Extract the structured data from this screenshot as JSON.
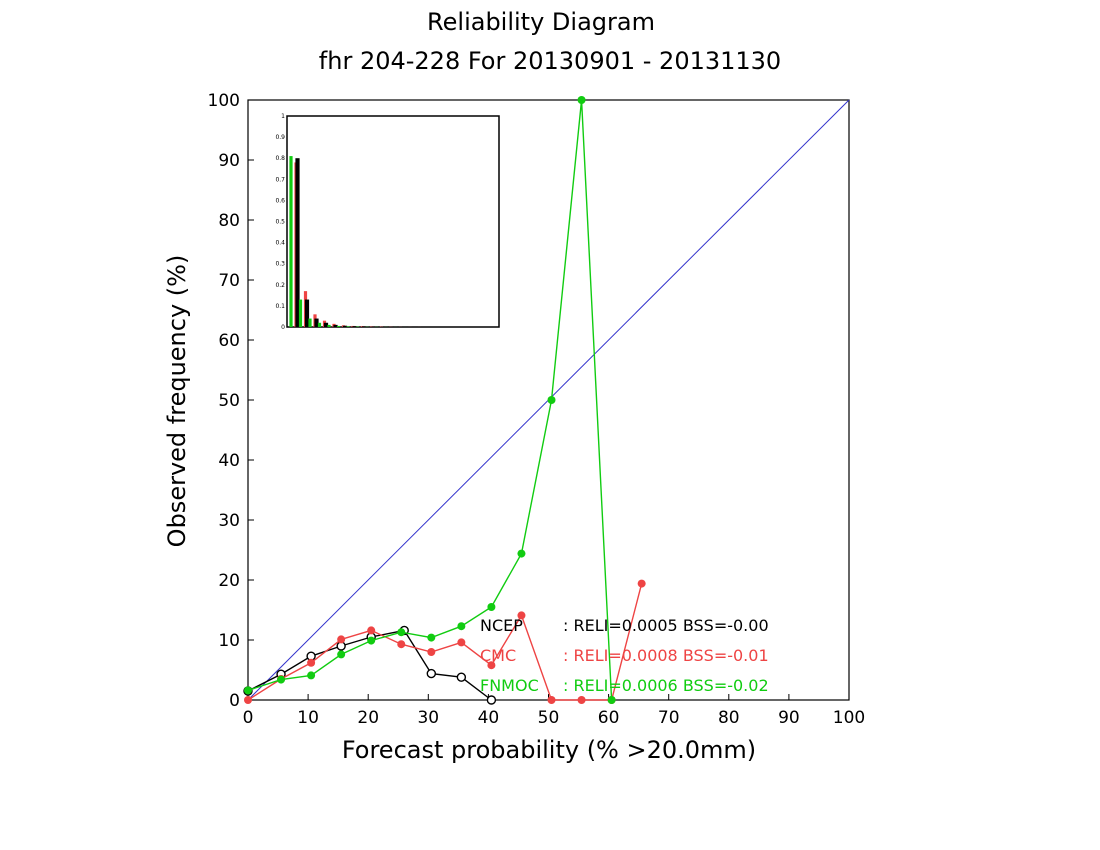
{
  "chart_data": {
    "type": "line",
    "title": "Reliability Diagram",
    "subtitle": "fhr 204-228 For 20130901 - 20131130",
    "xlabel": "Forecast probability (% >20.0mm)",
    "ylabel": "Observed frequency  (%)",
    "xlim": [
      0,
      100
    ],
    "ylim": [
      0,
      100
    ],
    "x_ticks": [
      "0",
      "10",
      "20",
      "30",
      "40",
      "50",
      "60",
      "70",
      "80",
      "90",
      "100"
    ],
    "y_ticks": [
      "0",
      "10",
      "20",
      "30",
      "40",
      "50",
      "60",
      "70",
      "80",
      "90",
      "100"
    ],
    "diagonal_color": "#3333cc",
    "grid": false,
    "series": [
      {
        "name": "NCEP",
        "color": "#000000",
        "marker": "open-circle",
        "stats": ": RELI=0.0005 BSS=-0.00",
        "x": [
          0,
          5.5,
          10.5,
          15.5,
          20.5,
          26,
          30.5,
          35.5,
          40.5
        ],
        "y": [
          1.5,
          4.3,
          7.3,
          9.0,
          10.5,
          11.6,
          4.4,
          3.8,
          0
        ]
      },
      {
        "name": "CMC",
        "color": "#ee4444",
        "marker": "filled-circle",
        "stats": ": RELI=0.0008 BSS=-0.01",
        "x": [
          0,
          5.5,
          10.5,
          15.5,
          20.5,
          25.5,
          30.5,
          35.5,
          40.5,
          45.5,
          50.5,
          55.5,
          60.5,
          65.5
        ],
        "y": [
          0,
          3.5,
          6.2,
          10.1,
          11.6,
          9.3,
          8.0,
          9.6,
          5.8,
          14.1,
          0,
          0,
          0,
          19.4
        ]
      },
      {
        "name": "FNMOC",
        "color": "#11cc11",
        "marker": "filled-circle",
        "stats": ": RELI=0.0006 BSS=-0.02",
        "x": [
          0,
          5.5,
          10.5,
          15.5,
          20.5,
          25.5,
          30.5,
          35.5,
          40.5,
          45.5,
          50.5,
          55.5,
          60.5
        ],
        "y": [
          1.6,
          3.4,
          4.1,
          7.6,
          9.9,
          11.3,
          10.4,
          12.3,
          15.5,
          24.4,
          50.0,
          100.0,
          0
        ]
      }
    ],
    "inset": {
      "type": "bar",
      "y_ticks": [
        "0",
        "0.1",
        "0.2",
        "0.3",
        "0.4",
        "0.5",
        "0.6",
        "0.7",
        "0.8",
        "0.9",
        "1"
      ],
      "ylim": [
        0,
        1
      ],
      "bins": [
        0,
        1,
        2,
        3,
        4,
        5,
        6,
        7,
        8,
        9,
        10,
        11,
        12,
        13
      ],
      "series": [
        {
          "name": "NCEP",
          "color": "#000000",
          "values": [
            0.8,
            0.13,
            0.04,
            0.02,
            0.01,
            0.006,
            0.004,
            0.003,
            0.002,
            0.001,
            0.001,
            0.0005,
            0.0003,
            0.0002
          ]
        },
        {
          "name": "CMC",
          "color": "#ee4444",
          "values": [
            0.78,
            0.17,
            0.06,
            0.03,
            0.015,
            0.008,
            0.005,
            0.004,
            0.003,
            0.002,
            0.001,
            0.0005,
            0.0003,
            0.0002
          ]
        },
        {
          "name": "FNMOC",
          "color": "#11cc11",
          "values": [
            0.81,
            0.13,
            0.04,
            0.02,
            0.01,
            0.005,
            0.003,
            0.002,
            0.001,
            0.0008,
            0.0005,
            0.0003,
            0.0001,
            0
          ]
        }
      ]
    }
  }
}
